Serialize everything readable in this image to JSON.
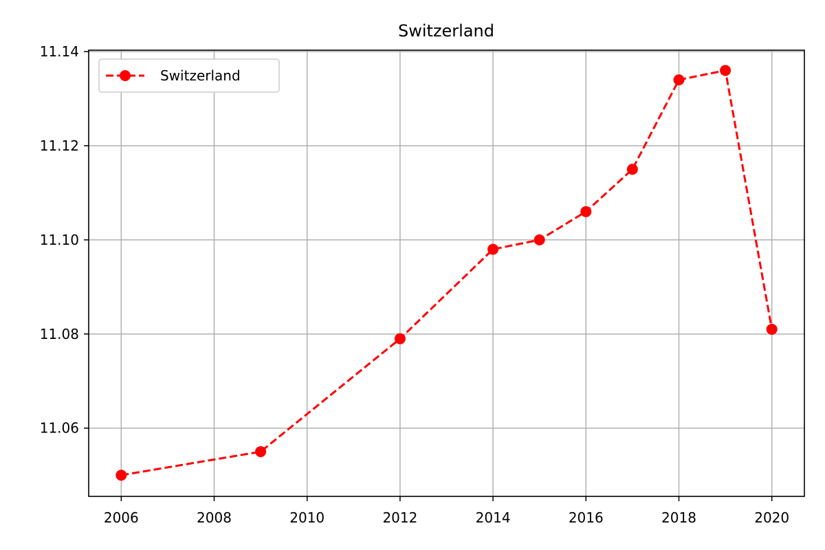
{
  "chart_data": {
    "type": "line",
    "title": "Switzerland",
    "xlabel": "",
    "ylabel": "",
    "xlim": [
      2005.3,
      2020.7
    ],
    "ylim": [
      11.0455,
      11.1403
    ],
    "x_ticks": [
      "2006",
      "2008",
      "2010",
      "2012",
      "2014",
      "2016",
      "2018",
      "2020"
    ],
    "y_ticks": [
      "11.06",
      "11.08",
      "11.10",
      "11.12",
      "11.14"
    ],
    "grid": true,
    "legend_position": "top-left",
    "series": [
      {
        "name": "Switzerland",
        "color": "#ff0000",
        "line_style": "dashed",
        "marker": "circle",
        "x": [
          2006,
          2009,
          2012,
          2014,
          2015,
          2016,
          2017,
          2018,
          2019,
          2020
        ],
        "y": [
          11.05,
          11.055,
          11.079,
          11.098,
          11.1,
          11.106,
          11.115,
          11.134,
          11.136,
          11.081
        ]
      }
    ]
  }
}
